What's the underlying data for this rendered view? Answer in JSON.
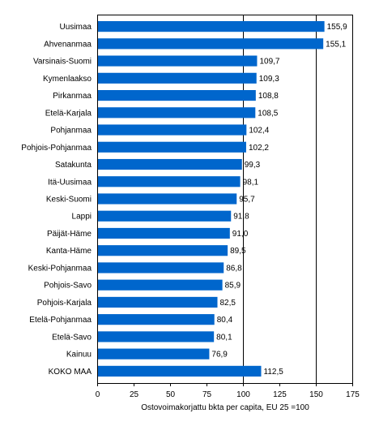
{
  "chart_data": {
    "type": "bar",
    "orientation": "horizontal",
    "categories": [
      "Uusimaa",
      "Ahvenanmaa",
      "Varsinais-Suomi",
      "Kymenlaakso",
      "Pirkanmaa",
      "Etelä-Karjala",
      "Pohjanmaa",
      "Pohjois-Pohjanmaa",
      "Satakunta",
      "Itä-Uusimaa",
      "Keski-Suomi",
      "Lappi",
      "Päijät-Häme",
      "Kanta-Häme",
      "Keski-Pohjanmaa",
      "Pohjois-Savo",
      "Pohjois-Karjala",
      "Etelä-Pohjanmaa",
      "Etelä-Savo",
      "Kainuu",
      "KOKO MAA"
    ],
    "values": [
      155.9,
      155.1,
      109.7,
      109.3,
      108.8,
      108.5,
      102.4,
      102.2,
      99.3,
      98.1,
      95.7,
      91.8,
      91.0,
      89.5,
      86.8,
      85.9,
      82.5,
      80.4,
      80.1,
      76.9,
      112.5
    ],
    "value_labels": [
      "155,9",
      "155,1",
      "109,7",
      "109,3",
      "108,8",
      "108,5",
      "102,4",
      "102,2",
      "99,3",
      "98,1",
      "95,7",
      "91,8",
      "91,0",
      "89,5",
      "86,8",
      "85,9",
      "82,5",
      "80,4",
      "80,1",
      "76,9",
      "112,5"
    ],
    "xlabel": "Ostovoimakorjattu bkta per capita, EU 25 =100",
    "ylabel": "",
    "xlim": [
      0,
      175
    ],
    "xticks": [
      0,
      25,
      50,
      75,
      100,
      125,
      150,
      175
    ],
    "grid": "vertical at 100 and 150",
    "legend": "none",
    "bar_color": "#0066cc"
  }
}
